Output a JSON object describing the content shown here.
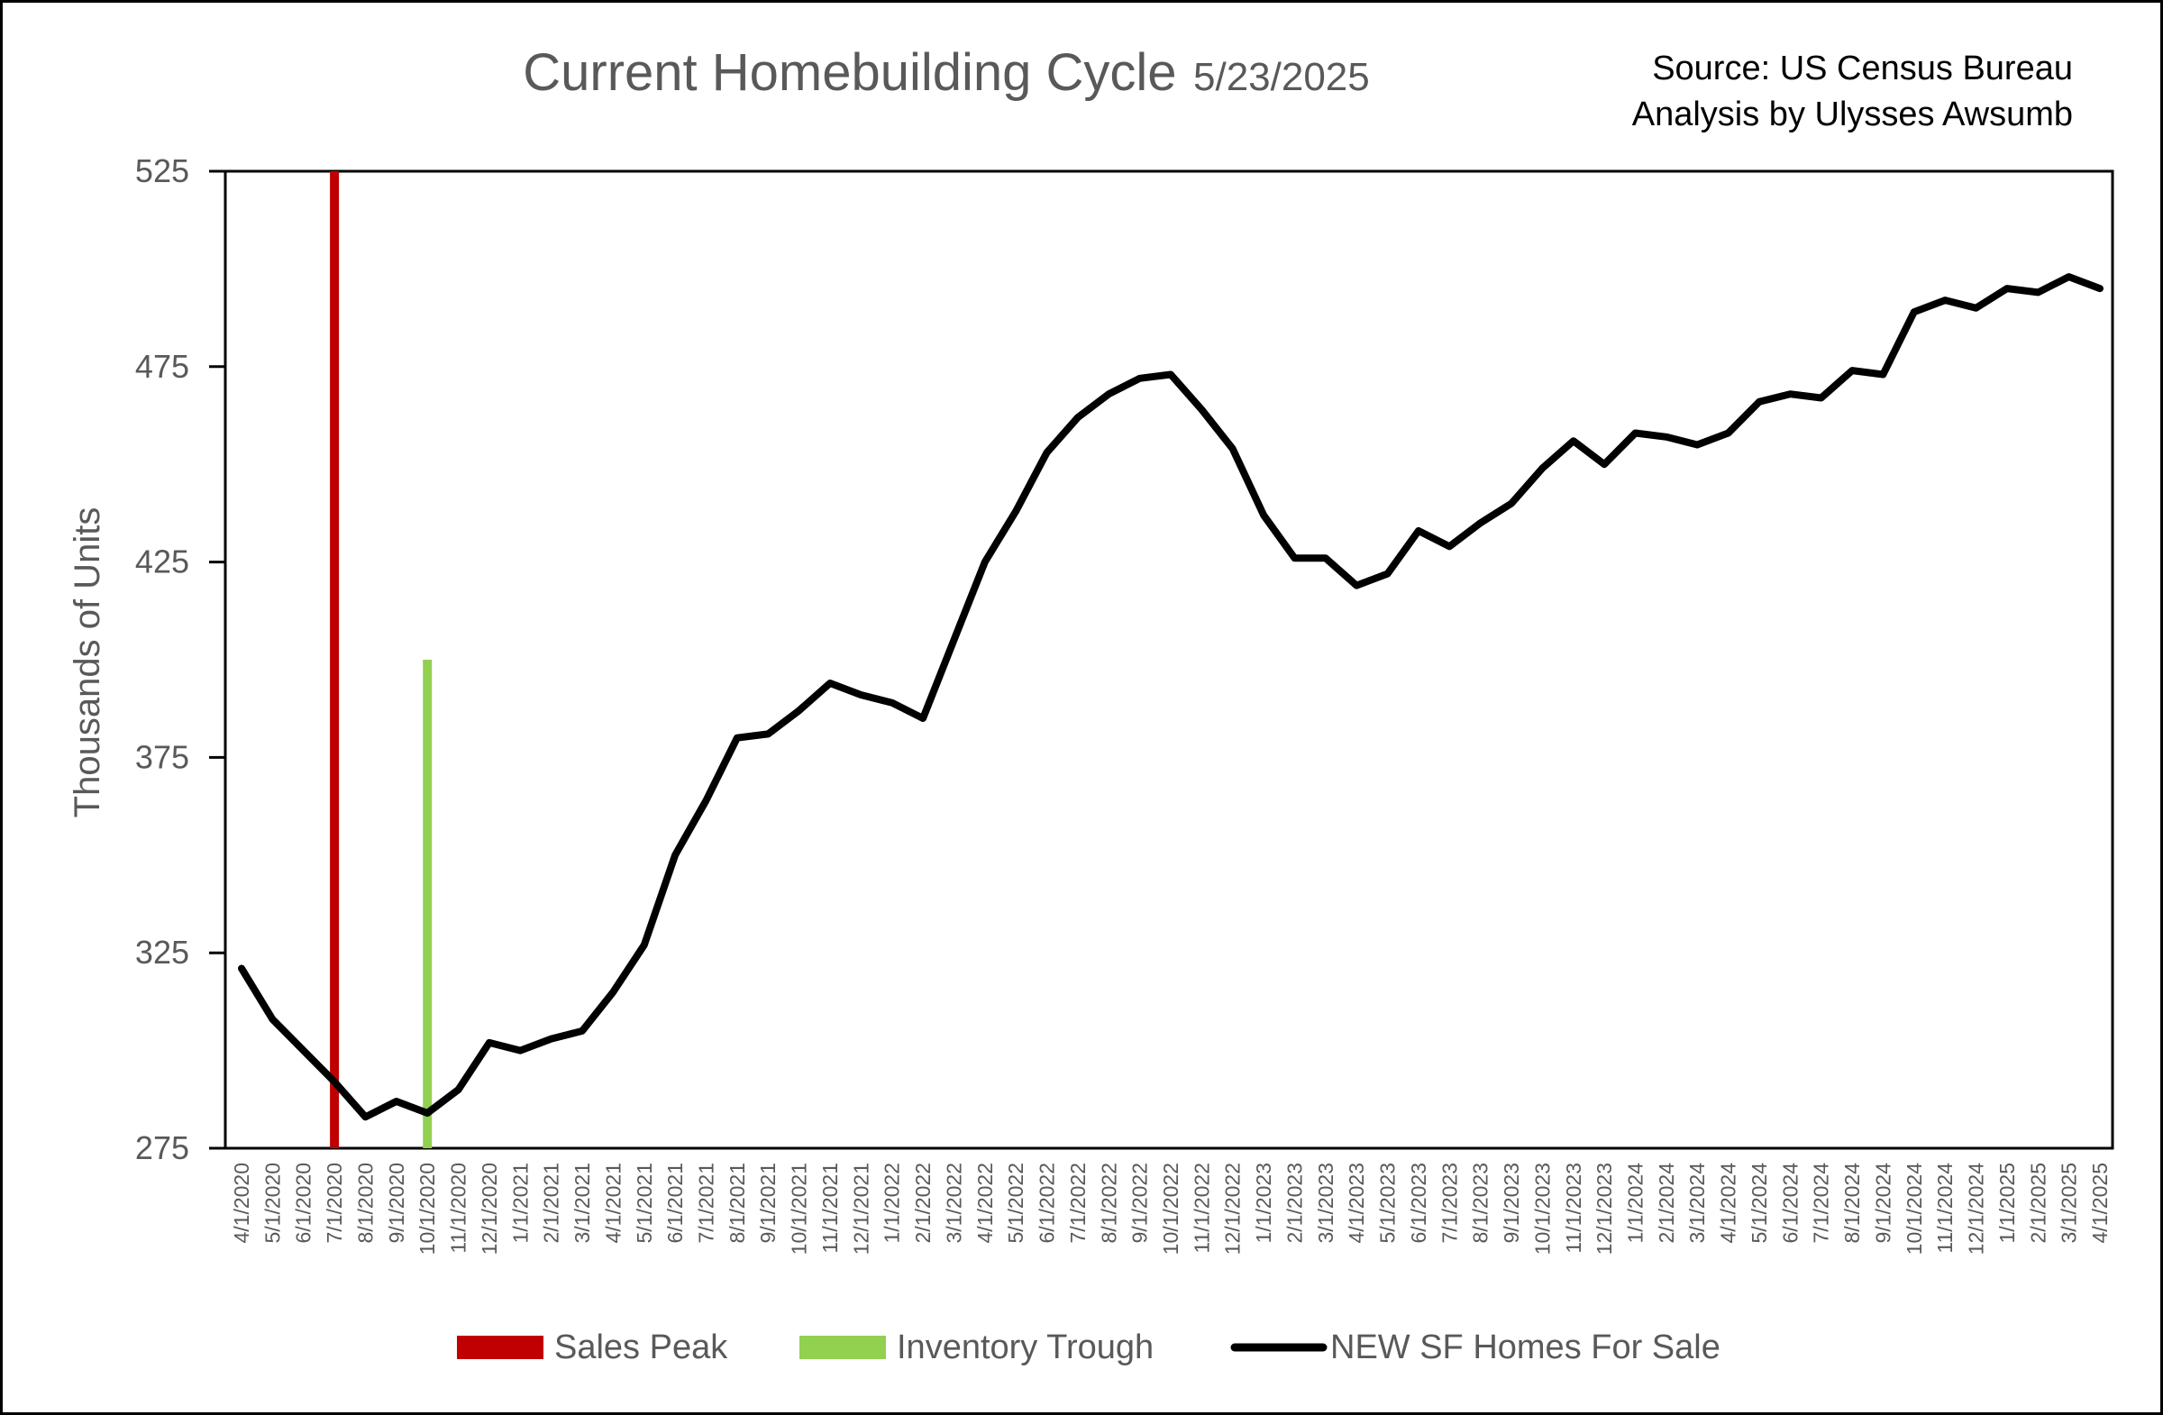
{
  "chart_data": {
    "type": "line",
    "title": "Current Homebuilding Cycle",
    "title_date": "5/23/2025",
    "source_lines": [
      "Source: US Census Bureau",
      "Analysis by Ulysses Awsumb"
    ],
    "ylabel": "Thousands of Units",
    "xlabel": "",
    "ylim": [
      275,
      525
    ],
    "yticks": [
      275,
      325,
      375,
      425,
      475,
      525
    ],
    "grid": false,
    "legend_position": "bottom",
    "x": [
      "4/1/2020",
      "5/1/2020",
      "6/1/2020",
      "7/1/2020",
      "8/1/2020",
      "9/1/2020",
      "10/1/2020",
      "11/1/2020",
      "12/1/2020",
      "1/1/2021",
      "2/1/2021",
      "3/1/2021",
      "4/1/2021",
      "5/1/2021",
      "6/1/2021",
      "7/1/2021",
      "8/1/2021",
      "9/1/2021",
      "10/1/2021",
      "11/1/2021",
      "12/1/2021",
      "1/1/2022",
      "2/1/2022",
      "3/1/2022",
      "4/1/2022",
      "5/1/2022",
      "6/1/2022",
      "7/1/2022",
      "8/1/2022",
      "9/1/2022",
      "10/1/2022",
      "11/1/2022",
      "12/1/2022",
      "1/1/2023",
      "2/1/2023",
      "3/1/2023",
      "4/1/2023",
      "5/1/2023",
      "6/1/2023",
      "7/1/2023",
      "8/1/2023",
      "9/1/2023",
      "10/1/2023",
      "11/1/2023",
      "12/1/2023",
      "1/1/2024",
      "2/1/2024",
      "3/1/2024",
      "4/1/2024",
      "5/1/2024",
      "6/1/2024",
      "7/1/2024",
      "8/1/2024",
      "9/1/2024",
      "10/1/2024",
      "11/1/2024",
      "12/1/2024",
      "1/1/2025",
      "2/1/2025",
      "3/1/2025",
      "4/1/2025"
    ],
    "series": [
      {
        "name": "NEW SF Homes For Sale",
        "color": "#000000",
        "values": [
          321,
          308,
          300,
          292,
          283,
          287,
          284,
          290,
          302,
          300,
          303,
          305,
          315,
          327,
          350,
          364,
          380,
          381,
          387,
          394,
          391,
          389,
          385,
          405,
          425,
          438,
          453,
          462,
          468,
          472,
          473,
          464,
          454,
          437,
          426,
          426,
          419,
          422,
          433,
          429,
          435,
          440,
          449,
          456,
          450,
          458,
          457,
          455,
          458,
          466,
          468,
          467,
          474,
          473,
          489,
          492,
          490,
          495,
          494,
          498,
          495
        ]
      }
    ],
    "markers": [
      {
        "name": "Sales Peak",
        "x": "7/1/2020",
        "y_from": 275,
        "y_to": 525,
        "color": "#C00000"
      },
      {
        "name": "Inventory Trough",
        "x": "10/1/2020",
        "y_from": 275,
        "y_to": 400,
        "color": "#92D050"
      }
    ]
  }
}
